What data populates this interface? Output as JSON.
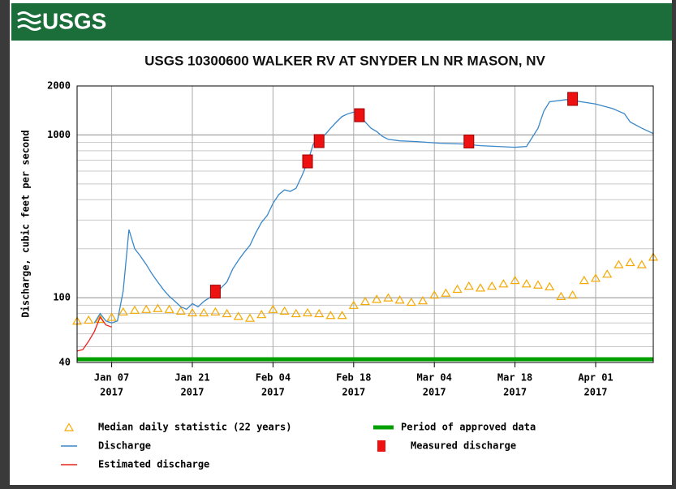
{
  "header": {
    "logo": "USGS"
  },
  "chart_data": {
    "type": "line",
    "title": "USGS 10300600 WALKER RV AT SNYDER LN NR MASON, NV",
    "ylabel": "Discharge, cubic feet per second",
    "log_y": true,
    "grid": true,
    "ylim": [
      40,
      2000
    ],
    "yticks": [
      40,
      100,
      1000,
      2000
    ],
    "xlim": [
      "2017-01-01",
      "2017-04-11"
    ],
    "xticks": [
      {
        "value": "2017-01-07",
        "label": "Jan 07",
        "sublabel": "2017"
      },
      {
        "value": "2017-01-21",
        "label": "Jan 21",
        "sublabel": "2017"
      },
      {
        "value": "2017-02-04",
        "label": "Feb 04",
        "sublabel": "2017"
      },
      {
        "value": "2017-02-18",
        "label": "Feb 18",
        "sublabel": "2017"
      },
      {
        "value": "2017-03-04",
        "label": "Mar 04",
        "sublabel": "2017"
      },
      {
        "value": "2017-03-18",
        "label": "Mar 18",
        "sublabel": "2017"
      },
      {
        "value": "2017-04-01",
        "label": "Apr 01",
        "sublabel": "2017"
      }
    ],
    "series": [
      {
        "name": "Median daily statistic (22 years)",
        "color": "#f5a800",
        "style": "triangle",
        "x": [
          "2017-01-01",
          "2017-01-03",
          "2017-01-05",
          "2017-01-07",
          "2017-01-09",
          "2017-01-11",
          "2017-01-13",
          "2017-01-15",
          "2017-01-17",
          "2017-01-19",
          "2017-01-21",
          "2017-01-23",
          "2017-01-25",
          "2017-01-27",
          "2017-01-29",
          "2017-01-31",
          "2017-02-02",
          "2017-02-04",
          "2017-02-06",
          "2017-02-08",
          "2017-02-10",
          "2017-02-12",
          "2017-02-14",
          "2017-02-16",
          "2017-02-18",
          "2017-02-20",
          "2017-02-22",
          "2017-02-24",
          "2017-02-26",
          "2017-02-28",
          "2017-03-02",
          "2017-03-04",
          "2017-03-06",
          "2017-03-08",
          "2017-03-10",
          "2017-03-12",
          "2017-03-14",
          "2017-03-16",
          "2017-03-18",
          "2017-03-20",
          "2017-03-22",
          "2017-03-24",
          "2017-03-26",
          "2017-03-28",
          "2017-03-30",
          "2017-04-01",
          "2017-04-03",
          "2017-04-05",
          "2017-04-07",
          "2017-04-09",
          "2017-04-11"
        ],
        "values": [
          72,
          73,
          74,
          76,
          82,
          84,
          85,
          86,
          85,
          83,
          81,
          81,
          82,
          80,
          77,
          75,
          79,
          85,
          83,
          80,
          81,
          80,
          78,
          78,
          90,
          95,
          98,
          100,
          97,
          94,
          96,
          104,
          107,
          113,
          118,
          115,
          118,
          122,
          128,
          122,
          120,
          117,
          102,
          104,
          128,
          132,
          140,
          160,
          165,
          160,
          178
        ]
      },
      {
        "name": "Discharge",
        "color": "#3a87c8",
        "style": "line",
        "x": [
          "2017-01-04",
          "2017-01-05",
          "2017-01-06",
          "2017-01-07",
          "2017-01-08",
          "2017-01-09",
          "2017-01-10",
          "2017-01-11",
          "2017-01-12",
          "2017-01-13",
          "2017-01-14",
          "2017-01-15",
          "2017-01-16",
          "2017-01-17",
          "2017-01-18",
          "2017-01-19",
          "2017-01-20",
          "2017-01-21",
          "2017-01-22",
          "2017-01-23",
          "2017-01-24",
          "2017-01-25",
          "2017-01-26",
          "2017-01-27",
          "2017-01-28",
          "2017-01-29",
          "2017-01-30",
          "2017-01-31",
          "2017-02-01",
          "2017-02-02",
          "2017-02-03",
          "2017-02-04",
          "2017-02-05",
          "2017-02-06",
          "2017-02-07",
          "2017-02-08",
          "2017-02-09",
          "2017-02-10",
          "2017-02-11",
          "2017-02-12",
          "2017-02-13",
          "2017-02-14",
          "2017-02-15",
          "2017-02-16",
          "2017-02-17",
          "2017-02-18",
          "2017-02-19",
          "2017-02-20",
          "2017-02-21",
          "2017-02-22",
          "2017-02-23",
          "2017-02-24",
          "2017-02-26",
          "2017-03-01",
          "2017-03-05",
          "2017-03-09",
          "2017-03-12",
          "2017-03-15",
          "2017-03-18",
          "2017-03-20",
          "2017-03-22",
          "2017-03-23",
          "2017-03-24",
          "2017-03-27",
          "2017-04-01",
          "2017-04-04",
          "2017-04-06",
          "2017-04-07",
          "2017-04-09",
          "2017-04-11"
        ],
        "values": [
          70,
          80,
          72,
          70,
          72,
          110,
          262,
          200,
          180,
          160,
          140,
          125,
          112,
          102,
          95,
          88,
          85,
          92,
          88,
          95,
          100,
          108,
          115,
          125,
          150,
          170,
          190,
          210,
          250,
          290,
          320,
          380,
          430,
          460,
          450,
          470,
          560,
          680,
          880,
          950,
          1000,
          1100,
          1200,
          1300,
          1350,
          1380,
          1350,
          1200,
          1100,
          1050,
          980,
          940,
          920,
          910,
          890,
          880,
          860,
          850,
          840,
          850,
          1100,
          1400,
          1600,
          1650,
          1550,
          1450,
          1350,
          1200,
          1100,
          1020
        ]
      },
      {
        "name": "Estimated discharge",
        "color": "#e8221c",
        "style": "line",
        "x": [
          "2017-01-01",
          "2017-01-02",
          "2017-01-03",
          "2017-01-04",
          "2017-01-05",
          "2017-01-06",
          "2017-01-07"
        ],
        "values": [
          47,
          48,
          54,
          62,
          76,
          68,
          66
        ]
      },
      {
        "name": "Measured discharge",
        "color": "#ee1111",
        "style": "square",
        "x": [
          "2017-01-25",
          "2017-02-10",
          "2017-02-12",
          "2017-02-19",
          "2017-03-10",
          "2017-03-28"
        ],
        "values": [
          109,
          688,
          917,
          1322,
          912,
          1665
        ]
      }
    ],
    "approved": {
      "name": "Period of approved data",
      "color": "#00a000"
    }
  }
}
